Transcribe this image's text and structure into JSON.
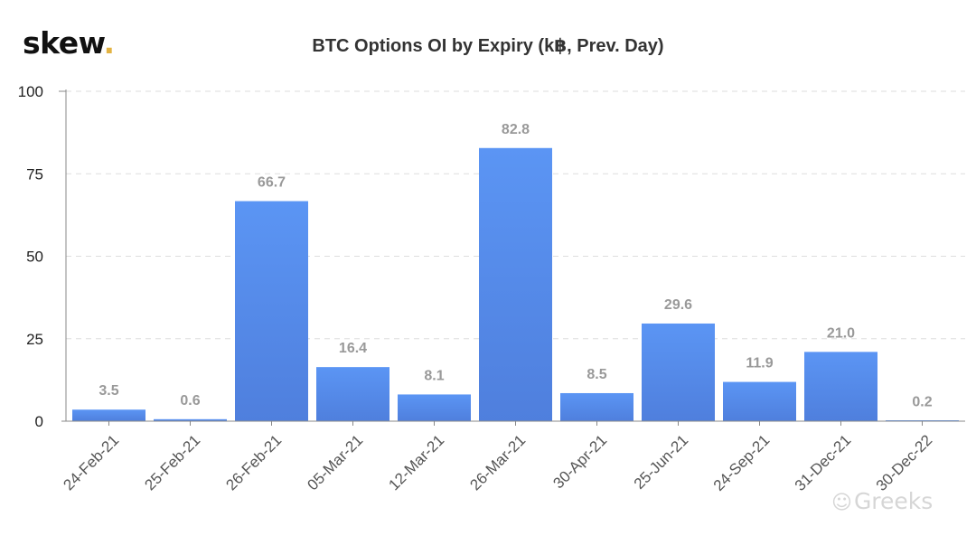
{
  "brand": {
    "name": "skew",
    "dot": "."
  },
  "watermark": {
    "icon": "wechat-icon",
    "text": "Greeks"
  },
  "colors": {
    "bar_top": "#5b95f4",
    "bar_bottom": "#4f7fdd",
    "grid": "#dddddd",
    "label": "#999999",
    "tick": "#555555",
    "axis": "#888888",
    "logo_dot": "#e3b343"
  },
  "chart_data": {
    "type": "bar",
    "title": "BTC Options OI by Expiry (k฿, Prev. Day)",
    "xlabel": "",
    "ylabel": "",
    "ylim": [
      0,
      100
    ],
    "yticks": [
      0,
      25,
      50,
      75,
      100
    ],
    "grid": true,
    "categories": [
      "24-Feb-21",
      "25-Feb-21",
      "26-Feb-21",
      "05-Mar-21",
      "12-Mar-21",
      "26-Mar-21",
      "30-Apr-21",
      "25-Jun-21",
      "24-Sep-21",
      "31-Dec-21",
      "30-Dec-22"
    ],
    "values": [
      3.5,
      0.6,
      66.7,
      16.4,
      8.1,
      82.8,
      8.5,
      29.6,
      11.9,
      21.0,
      0.2
    ],
    "value_labels": [
      "3.5",
      "0.6",
      "66.7",
      "16.4",
      "8.1",
      "82.8",
      "8.5",
      "29.6",
      "11.9",
      "21.0",
      "0.2"
    ]
  }
}
